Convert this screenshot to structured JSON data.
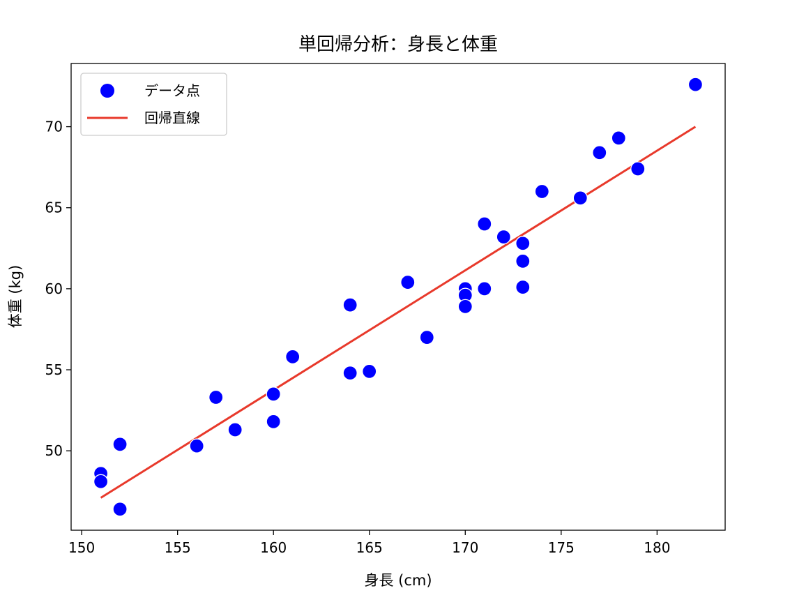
{
  "chart_data": {
    "type": "scatter",
    "title": "単回帰分析：身長と体重",
    "xlabel": "身長 (cm)",
    "ylabel": "体重 (kg)",
    "xlim": [
      149.45,
      183.55
    ],
    "ylim": [
      45.1,
      73.9
    ],
    "xticks": [
      150,
      155,
      160,
      165,
      170,
      175,
      180
    ],
    "yticks": [
      50,
      55,
      60,
      65,
      70
    ],
    "grid": false,
    "legend_position": "top-left",
    "series": [
      {
        "name": "データ点",
        "kind": "scatter",
        "color": "#0000ff",
        "points": [
          [
            151,
            48.6
          ],
          [
            151,
            48.1
          ],
          [
            152,
            50.4
          ],
          [
            152,
            46.4
          ],
          [
            156,
            50.3
          ],
          [
            157,
            53.3
          ],
          [
            158,
            51.3
          ],
          [
            160,
            53.5
          ],
          [
            160,
            51.8
          ],
          [
            161,
            55.8
          ],
          [
            164,
            59.0
          ],
          [
            164,
            54.8
          ],
          [
            165,
            54.9
          ],
          [
            167,
            60.4
          ],
          [
            168,
            57.0
          ],
          [
            170,
            60.0
          ],
          [
            170,
            59.6
          ],
          [
            170,
            58.9
          ],
          [
            171,
            64.0
          ],
          [
            171,
            60.0
          ],
          [
            172,
            63.2
          ],
          [
            173,
            62.8
          ],
          [
            173,
            61.7
          ],
          [
            173,
            60.1
          ],
          [
            174,
            66.0
          ],
          [
            176,
            65.6
          ],
          [
            177,
            68.4
          ],
          [
            178,
            69.3
          ],
          [
            179,
            67.4
          ],
          [
            182,
            72.6
          ]
        ]
      },
      {
        "name": "回帰直線",
        "kind": "line",
        "color": "#e8392b",
        "points": [
          [
            151,
            47.1
          ],
          [
            182,
            70.0
          ]
        ]
      }
    ]
  }
}
